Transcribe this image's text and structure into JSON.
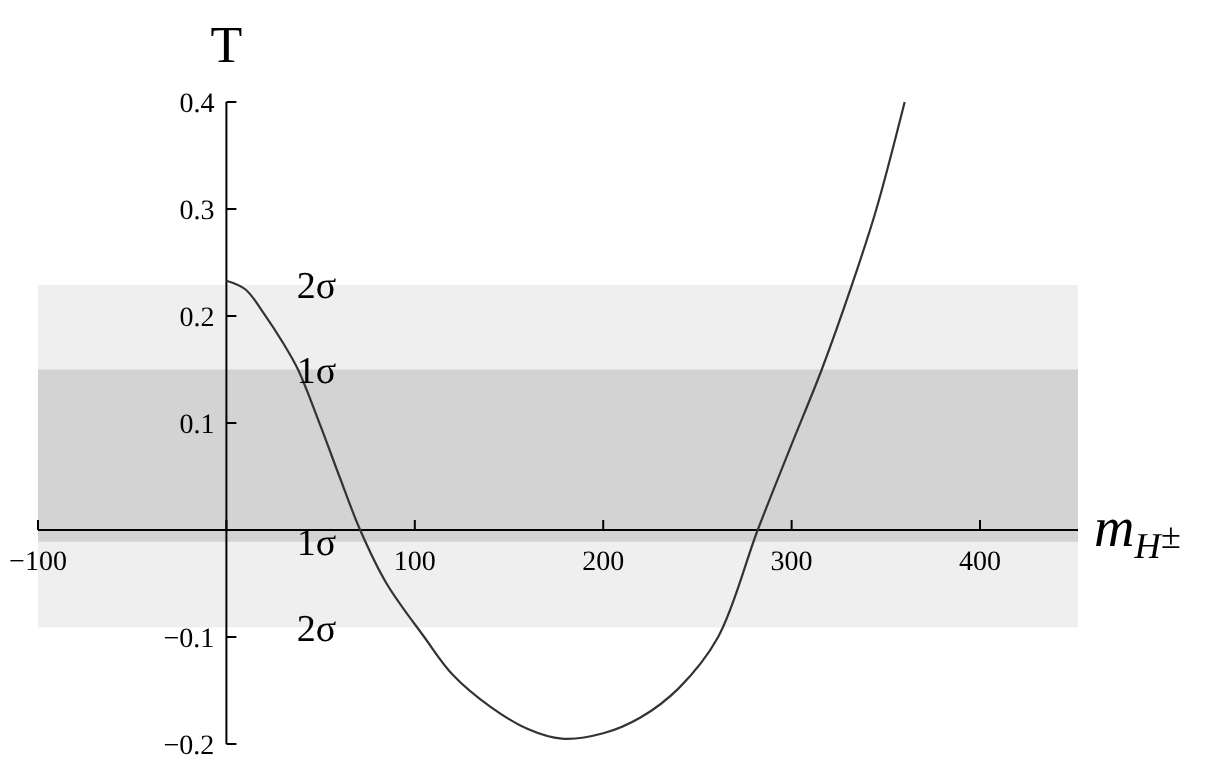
{
  "chart_data": {
    "type": "line",
    "xlabel": "m$_{H}$$^{±}$",
    "ylabel": "T",
    "xlim": [
      -100,
      452
    ],
    "ylim": [
      -0.2,
      0.4
    ],
    "xticks": [
      -100,
      {
        "value": 0,
        "label": null
      },
      100,
      200,
      300,
      400
    ],
    "yticks": [
      -0.2,
      -0.1,
      {
        "value": 0,
        "label": null
      },
      0.1,
      0.2,
      0.3,
      0.4
    ],
    "grid": false,
    "marker": "none",
    "line_style": "solid",
    "bands": [
      {
        "axis": "y",
        "from": -0.091,
        "to": 0.229,
        "color": "#efefef"
      },
      {
        "axis": "y",
        "from": -0.011,
        "to": 0.15,
        "color": "#d3d3d3"
      }
    ],
    "annotations": [
      {
        "text": "2σ",
        "y": 0.229
      },
      {
        "text": "1σ",
        "y": 0.15
      },
      {
        "text": "1σ",
        "y": -0.011
      },
      {
        "text": "2σ",
        "y": -0.091
      }
    ],
    "series": [
      {
        "color": "#333333",
        "x": [
          0,
          10,
          20,
          30,
          38,
          50,
          60,
          71,
          85,
          105,
          120,
          140,
          160,
          178,
          200,
          220,
          240,
          261,
          282,
          300,
          316,
          332,
          345,
          360
        ],
        "values": [
          0.233,
          0.225,
          0.202,
          0.175,
          0.15,
          0.097,
          0.05,
          0,
          -0.05,
          -0.1,
          -0.135,
          -0.165,
          -0.186,
          -0.195,
          -0.19,
          -0.175,
          -0.148,
          -0.1,
          0,
          0.08,
          0.15,
          0.229,
          0.3,
          0.4
        ]
      }
    ]
  }
}
